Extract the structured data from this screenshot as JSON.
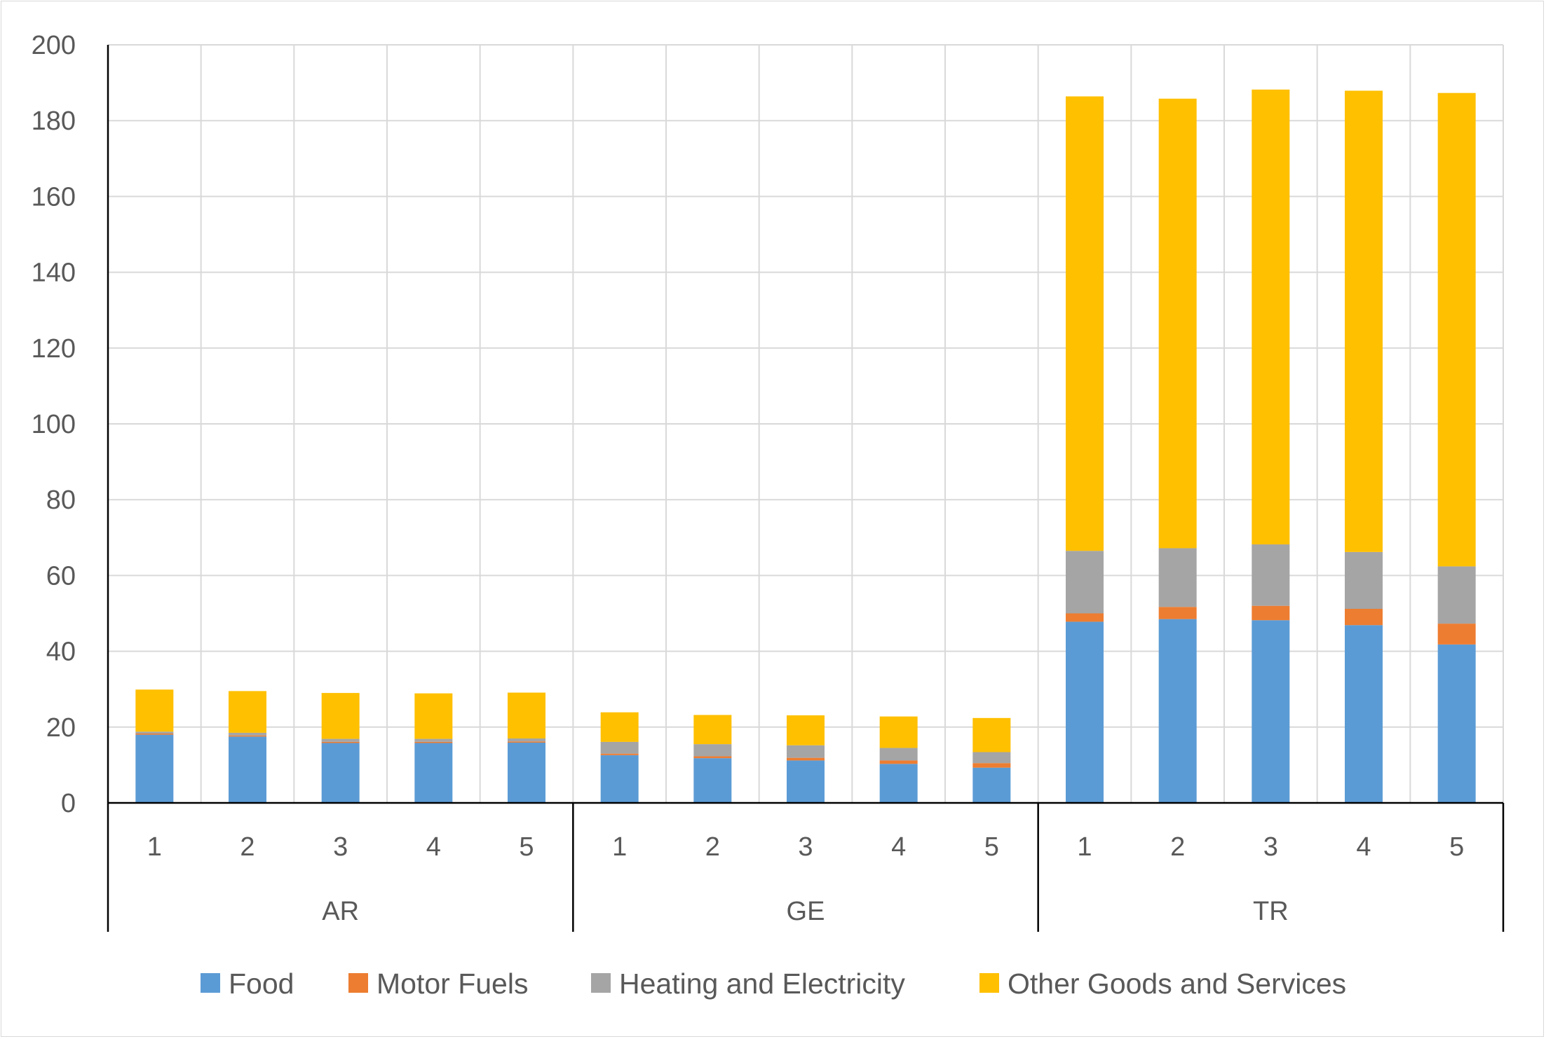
{
  "chart_data": {
    "type": "bar",
    "stacked": true,
    "title": "",
    "xlabel": "",
    "ylabel": "",
    "ylim": [
      0,
      200
    ],
    "yticks": [
      "0",
      "20",
      "40",
      "60",
      "80",
      "100",
      "120",
      "140",
      "160",
      "180",
      "200"
    ],
    "grid": true,
    "legend_position": "bottom",
    "groups": [
      {
        "label": "AR",
        "categories": [
          "1",
          "2",
          "3",
          "4",
          "5"
        ]
      },
      {
        "label": "GE",
        "categories": [
          "1",
          "2",
          "3",
          "4",
          "5"
        ]
      },
      {
        "label": "TR",
        "categories": [
          "1",
          "2",
          "3",
          "4",
          "5"
        ]
      }
    ],
    "series": [
      {
        "name": "Food",
        "color": "#5b9bd5",
        "values": [
          18.0,
          17.5,
          15.8,
          15.8,
          15.9,
          12.6,
          11.8,
          11.2,
          10.3,
          9.3,
          47.8,
          48.5,
          48.2,
          46.9,
          41.8
        ]
      },
      {
        "name": "Motor Fuels",
        "color": "#ed7d31",
        "values": [
          0.3,
          0.3,
          0.3,
          0.3,
          0.3,
          0.4,
          0.5,
          0.7,
          0.9,
          1.2,
          2.2,
          3.2,
          3.8,
          4.3,
          5.5
        ]
      },
      {
        "name": "Heating and Electricity",
        "color": "#a5a5a5",
        "values": [
          0.5,
          0.7,
          0.8,
          0.8,
          0.8,
          3.1,
          3.2,
          3.3,
          3.3,
          2.9,
          16.5,
          15.5,
          16.2,
          15.0,
          15.1
        ]
      },
      {
        "name": "Other Goods and Services",
        "color": "#ffc000",
        "values": [
          11.1,
          11.0,
          12.1,
          12.0,
          12.1,
          7.8,
          7.7,
          7.9,
          8.3,
          9.0,
          119.9,
          118.6,
          120.0,
          121.7,
          124.9
        ]
      }
    ]
  }
}
